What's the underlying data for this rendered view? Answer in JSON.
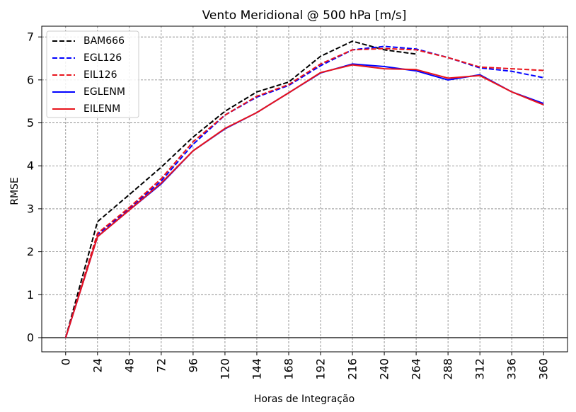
{
  "chart_data": {
    "type": "line",
    "title": "Vento Meridional @ 500 hPa [m/s]",
    "xlabel": "Horas de Integração",
    "ylabel": "RMSE",
    "x": [
      0,
      24,
      48,
      72,
      96,
      120,
      144,
      168,
      192,
      216,
      240,
      264,
      288,
      312,
      336,
      360
    ],
    "xticks": [
      "0",
      "24",
      "48",
      "72",
      "96",
      "120",
      "144",
      "168",
      "192",
      "216",
      "240",
      "264",
      "288",
      "312",
      "336",
      "360"
    ],
    "yticks": [
      "0",
      "1",
      "2",
      "3",
      "4",
      "5",
      "6",
      "7"
    ],
    "xlim": [
      -18,
      378
    ],
    "ylim": [
      -0.33,
      7.25
    ],
    "grid": true,
    "legend_position": "top-left",
    "series": [
      {
        "name": "BAM666",
        "color": "#000000",
        "dash": true,
        "values": [
          0,
          2.7,
          3.33,
          3.97,
          4.67,
          5.27,
          5.72,
          5.95,
          6.55,
          6.9,
          6.7,
          6.6,
          null,
          null,
          null,
          null
        ]
      },
      {
        "name": "EGL126",
        "color": "#0000ff",
        "dash": true,
        "values": [
          0,
          2.4,
          3.0,
          3.65,
          4.5,
          5.18,
          5.6,
          5.87,
          6.33,
          6.7,
          6.78,
          6.72,
          6.52,
          6.28,
          6.2,
          6.05
        ]
      },
      {
        "name": "EIL126",
        "color": "#e8141c",
        "dash": true,
        "values": [
          0,
          2.43,
          3.03,
          3.7,
          4.56,
          5.18,
          5.62,
          5.89,
          6.37,
          6.7,
          6.73,
          6.7,
          6.52,
          6.3,
          6.26,
          6.22
        ]
      },
      {
        "name": "EGLENM",
        "color": "#0000ff",
        "dash": false,
        "values": [
          0,
          2.35,
          2.97,
          3.58,
          4.35,
          4.86,
          5.24,
          5.7,
          6.16,
          6.37,
          6.31,
          6.21,
          6.0,
          6.12,
          5.72,
          5.45
        ]
      },
      {
        "name": "EILENM",
        "color": "#e8141c",
        "dash": false,
        "values": [
          0,
          2.35,
          2.97,
          3.6,
          4.35,
          4.87,
          5.24,
          5.7,
          6.17,
          6.35,
          6.26,
          6.24,
          6.04,
          6.1,
          5.72,
          5.42
        ]
      }
    ]
  }
}
